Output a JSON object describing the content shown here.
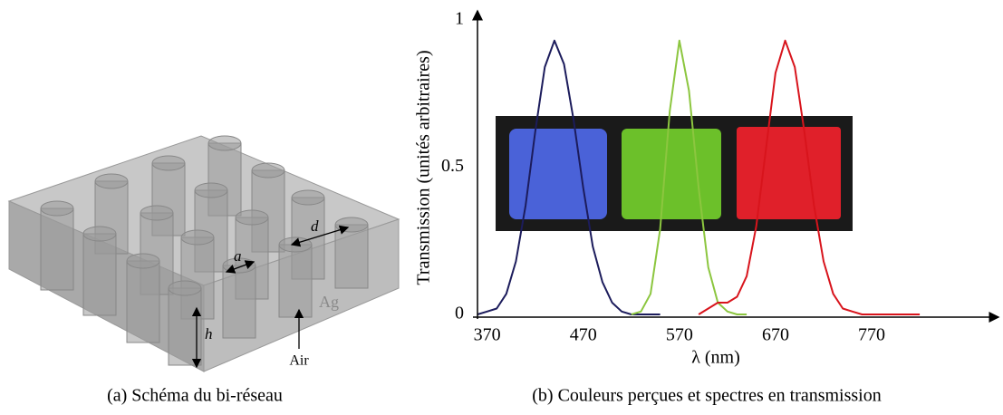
{
  "panel_a": {
    "labels": {
      "a": "a",
      "d": "d",
      "h": "h",
      "ag": "Ag",
      "air": "Air"
    },
    "caption": "(a) Schéma du bi-réseau"
  },
  "chart_data": {
    "type": "line",
    "caption": "(b) Couleurs perçues et spectres en transmission",
    "x_label": "λ (nm)",
    "y_label": "Transmission (unités arbitraires)",
    "x": [
      360,
      370,
      380,
      390,
      400,
      410,
      420,
      430,
      440,
      450,
      460,
      470,
      480,
      490,
      500,
      510,
      520,
      530,
      540,
      550,
      560,
      570,
      580,
      590,
      600,
      610,
      620,
      630,
      640,
      650,
      660,
      670,
      680,
      690,
      700,
      710,
      720,
      730,
      740,
      750,
      760,
      770,
      780,
      790,
      800,
      810,
      820
    ],
    "series": [
      {
        "color": "#1c1c5c",
        "values": [
          0,
          0.01,
          0.02,
          0.07,
          0.18,
          0.37,
          0.62,
          0.84,
          0.93,
          0.85,
          0.66,
          0.43,
          0.23,
          0.11,
          0.04,
          0.01,
          0,
          0,
          0,
          0,
          null,
          null,
          null,
          null,
          null,
          null,
          null,
          null,
          null,
          null,
          null,
          null,
          null,
          null,
          null,
          null,
          null,
          null,
          null,
          null,
          null,
          null,
          null,
          null,
          null,
          null,
          null
        ]
      },
      {
        "color": "#8cc63f",
        "values": [
          null,
          null,
          null,
          null,
          null,
          null,
          null,
          null,
          null,
          null,
          null,
          null,
          null,
          null,
          null,
          null,
          0,
          0.01,
          0.07,
          0.29,
          0.69,
          0.93,
          0.76,
          0.43,
          0.16,
          0.04,
          0.01,
          0,
          0,
          null,
          null,
          null,
          null,
          null,
          null,
          null,
          null,
          null,
          null,
          null,
          null,
          null,
          null,
          null,
          null,
          null,
          null
        ]
      },
      {
        "color": "#d8141c",
        "values": [
          null,
          null,
          null,
          null,
          null,
          null,
          null,
          null,
          null,
          null,
          null,
          null,
          null,
          null,
          null,
          null,
          null,
          null,
          null,
          null,
          null,
          null,
          null,
          0,
          0.02,
          0.04,
          0.04,
          0.06,
          0.13,
          0.3,
          0.56,
          0.82,
          0.93,
          0.84,
          0.62,
          0.37,
          0.18,
          0.07,
          0.02,
          0.01,
          0,
          0,
          0,
          0,
          0,
          0,
          0
        ]
      }
    ],
    "xlim": [
      360,
      900
    ],
    "xticks": [
      370,
      470,
      570,
      670,
      770
    ],
    "ylim": [
      0,
      1
    ],
    "yticks": [
      0,
      0.5,
      1
    ]
  }
}
